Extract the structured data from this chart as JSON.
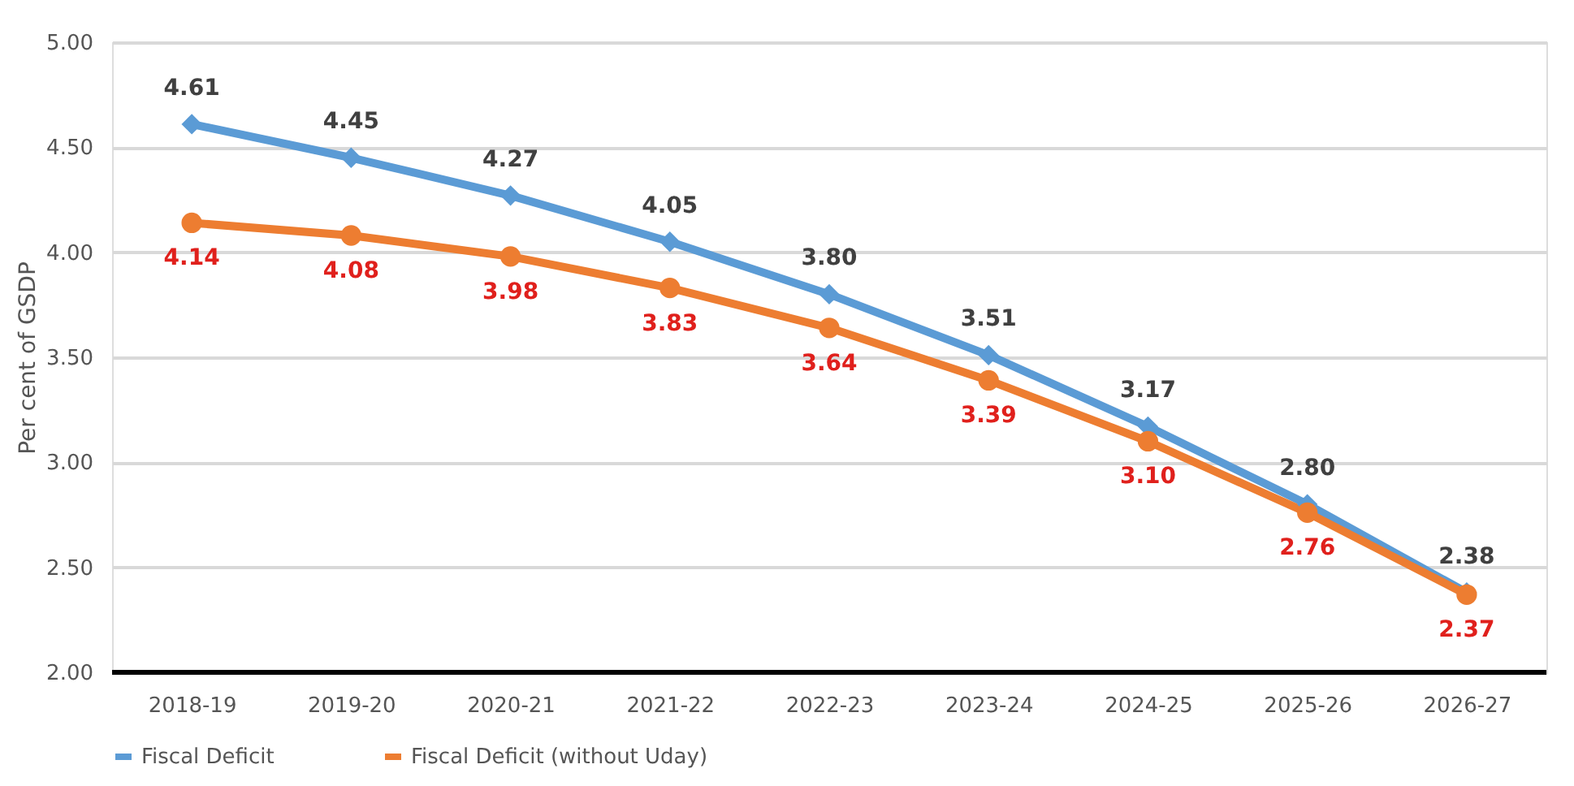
{
  "chart_data": {
    "type": "line",
    "ylabel": "Per cent of GSDP",
    "categories": [
      "2018-19",
      "2019-20",
      "2020-21",
      "2021-22",
      "2022-23",
      "2023-24",
      "2024-25",
      "2025-26",
      "2026-27"
    ],
    "series": [
      {
        "name": "Fiscal Deficit",
        "color": "#5b9bd5",
        "marker": "diamond",
        "values": [
          4.61,
          4.45,
          4.27,
          4.05,
          3.8,
          3.51,
          3.17,
          2.8,
          2.38
        ],
        "value_labels": [
          "4.61",
          "4.45",
          "4.27",
          "4.05",
          "3.80",
          "3.51",
          "3.17",
          "2.80",
          "2.38"
        ]
      },
      {
        "name": "Fiscal Deficit (without Uday)",
        "color": "#ed7d31",
        "marker": "circle",
        "values": [
          4.14,
          4.08,
          3.98,
          3.83,
          3.64,
          3.39,
          3.1,
          2.76,
          2.37
        ],
        "value_labels": [
          "4.14",
          "4.08",
          "3.98",
          "3.83",
          "3.64",
          "3.39",
          "3.10",
          "2.76",
          "2.37"
        ]
      }
    ],
    "ylim": [
      2,
      5
    ],
    "yticks": [
      {
        "value": 2,
        "label": "2.00"
      },
      {
        "value": 2.5,
        "label": "2.50"
      },
      {
        "value": 3,
        "label": "3.00"
      },
      {
        "value": 3.5,
        "label": "3.50"
      },
      {
        "value": 4,
        "label": "4.00"
      },
      {
        "value": 4.5,
        "label": "4.50"
      },
      {
        "value": 5,
        "label": "5.00"
      }
    ],
    "grid": "y",
    "legend": "bottom",
    "line_style": "solid"
  }
}
